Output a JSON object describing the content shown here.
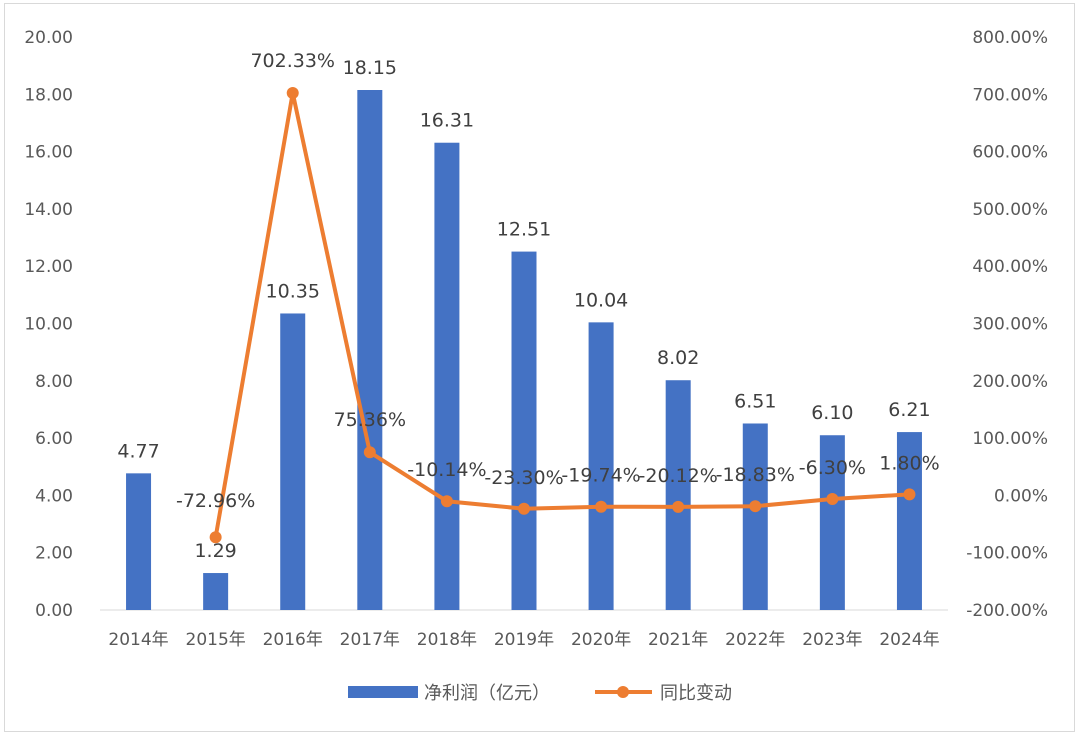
{
  "chart_data": {
    "type": "bar",
    "title": "",
    "categories": [
      "2014年",
      "2015年",
      "2016年",
      "2017年",
      "2018年",
      "2019年",
      "2020年",
      "2021年",
      "2022年",
      "2023年",
      "2024年"
    ],
    "series": [
      {
        "name": "净利润（亿元）",
        "type": "bar",
        "axis": "left",
        "color": "#4472C4",
        "values": [
          4.77,
          1.29,
          10.35,
          18.15,
          16.31,
          12.51,
          10.04,
          8.02,
          6.51,
          6.1,
          6.21
        ],
        "labels": [
          "4.77",
          "1.29",
          "10.35",
          "18.15",
          "16.31",
          "12.51",
          "10.04",
          "8.02",
          "6.51",
          "6.10",
          "6.21"
        ]
      },
      {
        "name": "同比变动",
        "type": "line",
        "axis": "right",
        "color": "#ED7D31",
        "values": [
          null,
          -72.96,
          702.33,
          75.36,
          -10.14,
          -23.3,
          -19.74,
          -20.12,
          -18.83,
          -6.3,
          1.8
        ],
        "labels": [
          "",
          "-72.96%",
          "702.33%",
          "75.36%",
          "-10.14%",
          "-23.30%",
          "-19.74%",
          "-20.12%",
          "-18.83%",
          "-6.30%",
          "1.80%"
        ]
      }
    ],
    "y_left": {
      "ylim": [
        0,
        20
      ],
      "ticks": [
        "0.00",
        "2.00",
        "4.00",
        "6.00",
        "8.00",
        "10.00",
        "12.00",
        "14.00",
        "16.00",
        "18.00",
        "20.00"
      ]
    },
    "y_right": {
      "ylim": [
        -200,
        800
      ],
      "ticks": [
        "-200.00%",
        "-100.00%",
        "0.00%",
        "100.00%",
        "200.00%",
        "300.00%",
        "400.00%",
        "500.00%",
        "600.00%",
        "700.00%",
        "800.00%"
      ]
    },
    "grid": false,
    "legend": "bottom"
  }
}
